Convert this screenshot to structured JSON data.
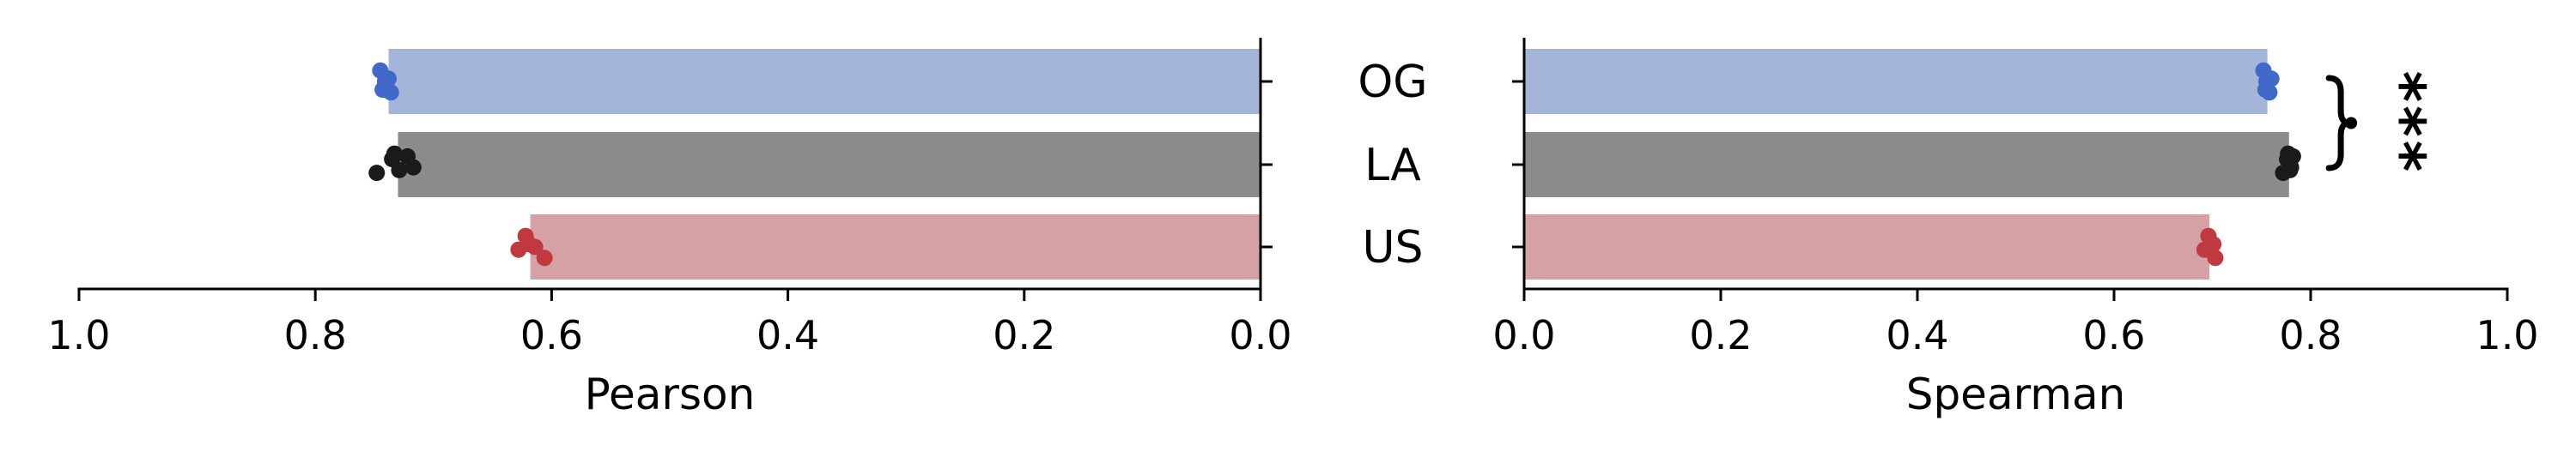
{
  "colors": {
    "background": "#ffffff",
    "axis": "#000000",
    "bars": [
      "#a5b5da",
      "#8c8c8c",
      "#d6a1a5"
    ],
    "points": [
      "#4169c9",
      "#1a1a1a",
      "#c0393f"
    ]
  },
  "chart_data": [
    {
      "type": "bar",
      "orientation": "horizontal",
      "xlabel": "Pearson",
      "xlim": [
        1.0,
        0.0
      ],
      "x_inverted": true,
      "xticks": [
        "1.0",
        "0.8",
        "0.6",
        "0.4",
        "0.2",
        "0.0"
      ],
      "categories": [
        "OG",
        "LA",
        "US"
      ],
      "values": [
        0.738,
        0.73,
        0.618
      ],
      "points": [
        [
          0.745,
          0.741,
          0.736,
          0.738,
          0.743
        ],
        [
          0.748,
          0.735,
          0.729,
          0.722,
          0.717,
          0.733
        ],
        [
          0.628,
          0.622,
          0.614,
          0.606,
          0.619
        ]
      ],
      "grid": false
    },
    {
      "type": "bar",
      "orientation": "horizontal",
      "xlabel": "Spearman",
      "xlim": [
        0.0,
        1.0
      ],
      "xticks": [
        "0.0",
        "0.2",
        "0.4",
        "0.6",
        "0.8",
        "1.0"
      ],
      "categories": [
        "OG",
        "LA",
        "US"
      ],
      "values": [
        0.756,
        0.778,
        0.697
      ],
      "points": [
        [
          0.752,
          0.755,
          0.758,
          0.76,
          0.754
        ],
        [
          0.772,
          0.776,
          0.779,
          0.782,
          0.78,
          0.777
        ],
        [
          0.692,
          0.696,
          0.699,
          0.703,
          0.701
        ]
      ],
      "annotations": [
        {
          "text": "***",
          "between": [
            "OG",
            "LA"
          ]
        }
      ],
      "grid": false
    }
  ]
}
